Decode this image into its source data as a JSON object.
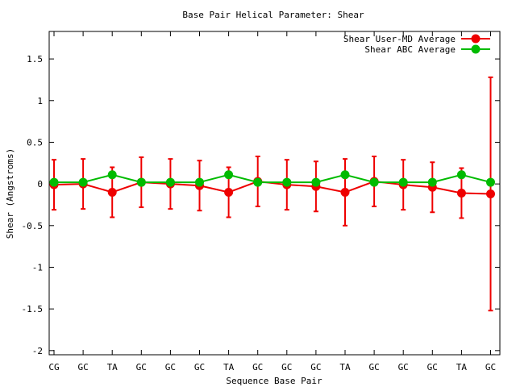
{
  "chart_data": {
    "type": "line",
    "title": "Base Pair Helical Parameter: Shear",
    "xlabel": "Sequence Base Pair",
    "ylabel": "Shear (Angstroms)",
    "categories": [
      "CG",
      "GC",
      "TA",
      "GC",
      "GC",
      "GC",
      "TA",
      "GC",
      "GC",
      "GC",
      "TA",
      "GC",
      "GC",
      "GC",
      "TA",
      "GC"
    ],
    "ylim": [
      -2.05,
      1.83
    ],
    "yticks": [
      {
        "value": 1.5,
        "label": "1.5"
      },
      {
        "value": 1,
        "label": "1"
      },
      {
        "value": 0.5,
        "label": "0.5"
      },
      {
        "value": 0,
        "label": "0"
      },
      {
        "value": -0.5,
        "label": "-0.5"
      },
      {
        "value": -1,
        "label": "-1"
      },
      {
        "value": -1.5,
        "label": "-1.5"
      },
      {
        "value": -2,
        "label": "-2"
      }
    ],
    "grid": false,
    "legend_position": "top-right",
    "series": [
      {
        "name": "Shear User-MD Average",
        "color": "#ee0000",
        "values": [
          -0.01,
          0.0,
          -0.1,
          0.02,
          0.0,
          -0.02,
          -0.1,
          0.03,
          -0.01,
          -0.03,
          -0.1,
          0.03,
          -0.01,
          -0.04,
          -0.11,
          -0.12
        ],
        "error": [
          0.3,
          0.3,
          0.3,
          0.3,
          0.3,
          0.3,
          0.3,
          0.3,
          0.3,
          0.3,
          0.4,
          0.3,
          0.3,
          0.3,
          0.3,
          1.4
        ]
      },
      {
        "name": "Shear ABC Average",
        "color": "#00bb00",
        "values": [
          0.02,
          0.02,
          0.11,
          0.02,
          0.02,
          0.02,
          0.11,
          0.02,
          0.02,
          0.02,
          0.11,
          0.02,
          0.02,
          0.02,
          0.11,
          0.02
        ]
      }
    ]
  }
}
